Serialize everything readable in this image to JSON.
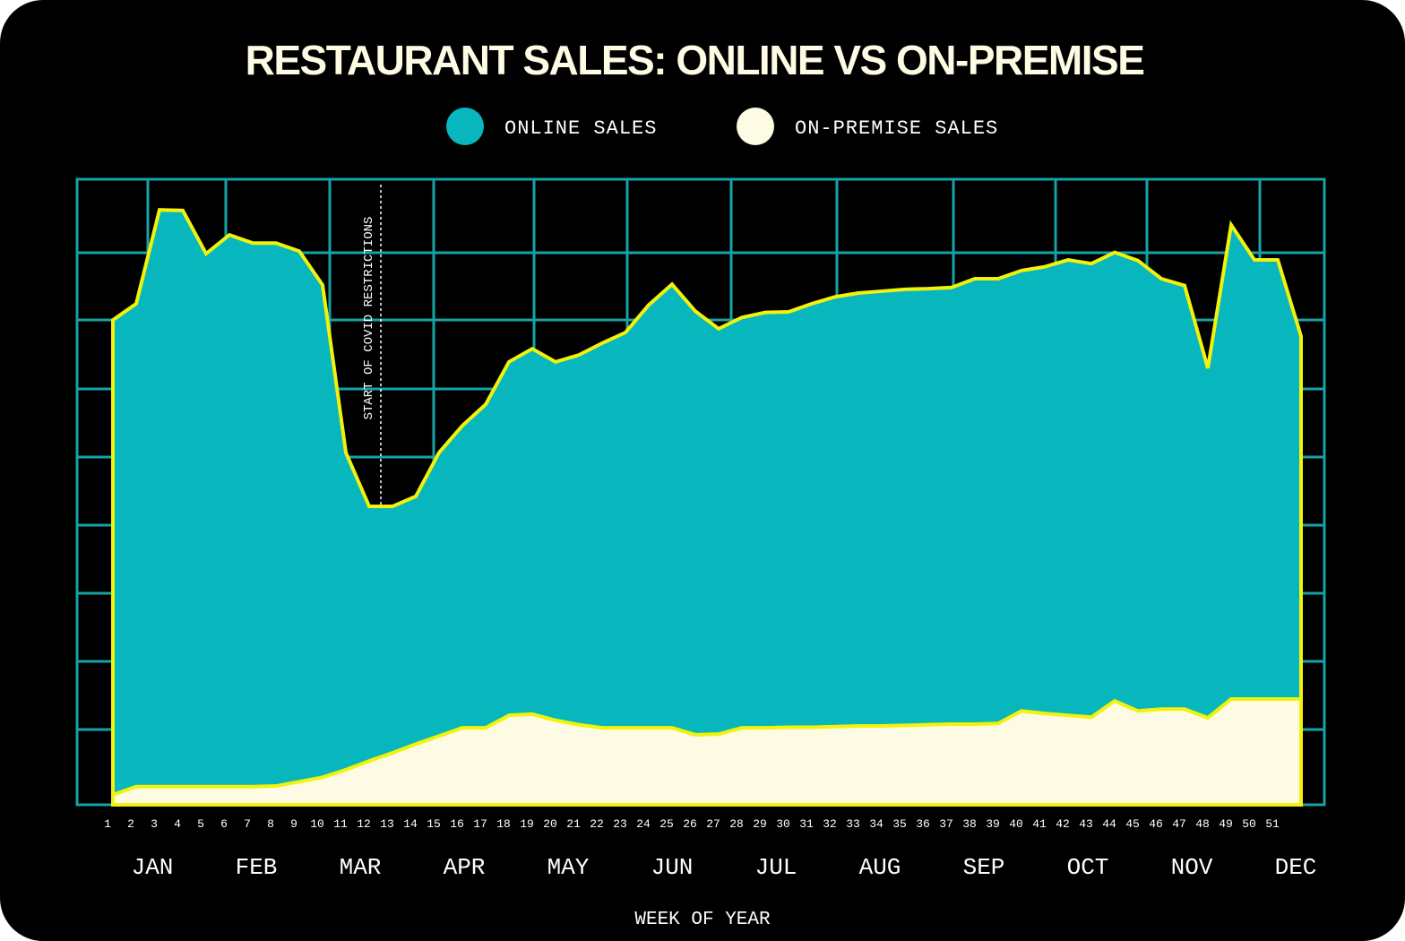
{
  "chart_data": {
    "type": "area",
    "title": "RESTAURANT SALES: ONLINE VS ON-PREMISE",
    "x_label": "WEEK OF YEAR",
    "x": [
      1,
      2,
      3,
      4,
      5,
      6,
      7,
      8,
      9,
      10,
      11,
      12,
      13,
      14,
      15,
      16,
      17,
      18,
      19,
      20,
      21,
      22,
      23,
      24,
      25,
      26,
      27,
      28,
      29,
      30,
      31,
      32,
      33,
      34,
      35,
      36,
      37,
      38,
      39,
      40,
      41,
      42,
      43,
      44,
      45,
      46,
      47,
      48,
      49,
      50,
      51,
      52
    ],
    "xlim": [
      1,
      52
    ],
    "xticks": [
      1,
      2,
      3,
      4,
      5,
      6,
      7,
      8,
      9,
      10,
      11,
      12,
      13,
      14,
      15,
      16,
      17,
      18,
      19,
      20,
      21,
      22,
      23,
      24,
      25,
      26,
      27,
      28,
      29,
      30,
      31,
      32,
      33,
      34,
      35,
      36,
      37,
      38,
      39,
      40,
      41,
      42,
      43,
      44,
      45,
      46,
      47,
      48,
      49,
      50,
      51
    ],
    "month_labels": [
      "JAN",
      "FEB",
      "MAR",
      "APR",
      "MAY",
      "JUN",
      "JUL",
      "AUG",
      "SEP",
      "OCT",
      "NOV",
      "DEC"
    ],
    "ylim": [
      0,
      100
    ],
    "grid": true,
    "line_color": "#f2f20a",
    "series": [
      {
        "name": "ONLINE SALES",
        "color": "#07b7bd",
        "values": [
          77.5,
          80.1,
          95.1,
          95.0,
          88.1,
          91.1,
          89.8,
          89.8,
          88.5,
          83.1,
          56.3,
          47.7,
          47.7,
          49.3,
          56.3,
          60.6,
          64.0,
          70.8,
          72.9,
          70.8,
          71.9,
          73.8,
          75.5,
          79.9,
          83.2,
          78.9,
          76.1,
          77.9,
          78.7,
          78.8,
          80.1,
          81.2,
          81.8,
          82.1,
          82.4,
          82.5,
          82.7,
          84.1,
          84.1,
          85.4,
          86.0,
          87.1,
          86.5,
          88.3,
          87.0,
          84.1,
          83.0,
          69.8,
          92.7,
          87.1,
          87.1,
          74.9
        ]
      },
      {
        "name": "ON-PREMISE SALES",
        "color": "#fdfbe3",
        "values": [
          1.6,
          2.9,
          2.9,
          2.9,
          2.9,
          2.9,
          2.9,
          3.0,
          3.7,
          4.4,
          5.6,
          7.0,
          8.3,
          9.7,
          11.0,
          12.3,
          12.3,
          14.3,
          14.5,
          13.5,
          12.8,
          12.3,
          12.3,
          12.3,
          12.3,
          11.2,
          11.3,
          12.3,
          12.3,
          12.4,
          12.4,
          12.5,
          12.6,
          12.6,
          12.7,
          12.8,
          12.9,
          12.9,
          13.0,
          15.0,
          14.6,
          14.3,
          14.0,
          16.6,
          15.0,
          15.3,
          15.3,
          13.9,
          16.9,
          16.9,
          16.9,
          16.9
        ]
      }
    ],
    "annotations": [
      {
        "text": "START OF COVID RESTRICTIONS",
        "x": 12.5
      }
    ]
  }
}
